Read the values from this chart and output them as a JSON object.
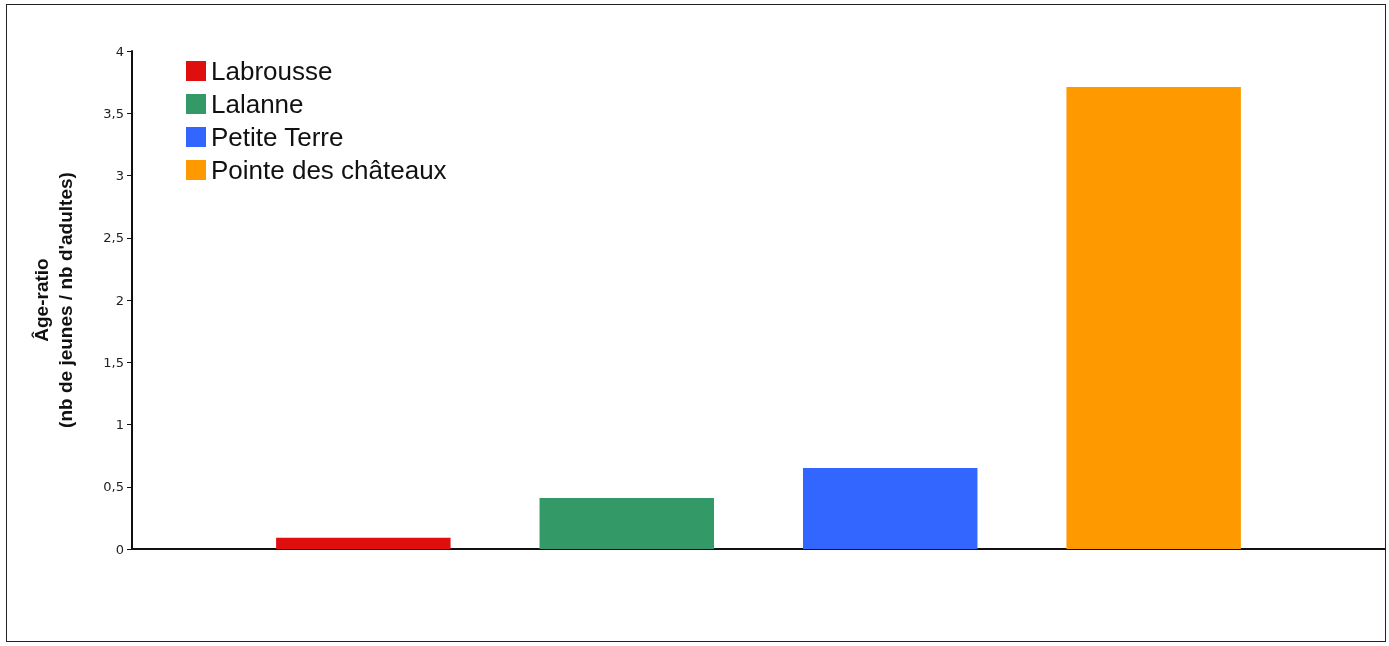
{
  "chart_data": {
    "type": "bar",
    "ylabel": "Âge-ratio\n(nb de jeunes / nb d'adultes)",
    "categories": [
      null
    ],
    "series": [
      {
        "name": "Labrousse",
        "color": "#e00f0f",
        "values": [
          0.09
        ]
      },
      {
        "name": "Lalanne",
        "color": "#339966",
        "values": [
          0.41
        ]
      },
      {
        "name": "Petite Terre",
        "color": "#3366ff",
        "values": [
          0.65
        ]
      },
      {
        "name": "Pointe des châteaux",
        "color": "#ff9900",
        "values": [
          3.71
        ]
      }
    ],
    "ylim": [
      0,
      4
    ],
    "yticks": [
      0,
      {
        "value": 0.5,
        "label": "0,5"
      },
      1,
      {
        "value": 1.5,
        "label": "1,5"
      },
      2,
      {
        "value": 2.5,
        "label": "2,5"
      },
      3,
      {
        "value": 3.5,
        "label": "3,5"
      },
      4
    ],
    "grid": false,
    "legend": "top left"
  }
}
